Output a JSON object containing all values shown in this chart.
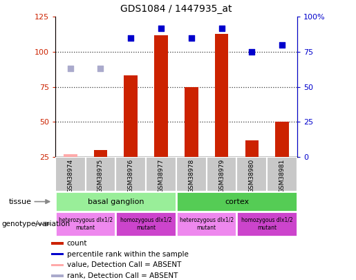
{
  "title": "GDS1084 / 1447935_at",
  "samples": [
    "GSM38974",
    "GSM38975",
    "GSM38976",
    "GSM38977",
    "GSM38978",
    "GSM38979",
    "GSM38980",
    "GSM38981"
  ],
  "count_values": [
    null,
    30,
    83,
    112,
    75,
    113,
    37,
    50
  ],
  "count_absent": [
    27,
    null,
    null,
    null,
    null,
    null,
    null,
    null
  ],
  "percentile_values": [
    null,
    null,
    85,
    92,
    85,
    92,
    75,
    80
  ],
  "percentile_absent": [
    63,
    63,
    null,
    null,
    null,
    null,
    null,
    null
  ],
  "ylim_left": [
    25,
    125
  ],
  "ylim_right": [
    0,
    100
  ],
  "left_ticks": [
    25,
    50,
    75,
    100,
    125
  ],
  "right_ticks": [
    0,
    25,
    50,
    75,
    100
  ],
  "right_tick_labels": [
    "0",
    "25",
    "50",
    "75",
    "100%"
  ],
  "bar_color": "#CC2200",
  "bar_absent_color": "#FFAAAA",
  "dot_color": "#0000CC",
  "dot_absent_color": "#AAAACC",
  "bar_width": 0.45,
  "dot_size": 40,
  "left_tick_color": "#CC2200",
  "right_tick_color": "#0000CC",
  "grid_color": "#333333",
  "grid_style": "dotted",
  "tissue_data": [
    {
      "label": "basal ganglion",
      "start": 0,
      "end": 3,
      "color": "#99EE99"
    },
    {
      "label": "cortex",
      "start": 4,
      "end": 7,
      "color": "#55CC55"
    }
  ],
  "geno_data": [
    {
      "label": "heterozygous dlx1/2\nmutant",
      "start": 0,
      "end": 1,
      "color": "#EE88EE"
    },
    {
      "label": "homozygous dlx1/2\nmutant",
      "start": 2,
      "end": 3,
      "color": "#CC44CC"
    },
    {
      "label": "heterozygous dlx1/2\nmutant",
      "start": 4,
      "end": 5,
      "color": "#EE88EE"
    },
    {
      "label": "homozygous dlx1/2\nmutant",
      "start": 6,
      "end": 7,
      "color": "#CC44CC"
    }
  ],
  "legend_items": [
    {
      "label": "count",
      "color": "#CC2200"
    },
    {
      "label": "percentile rank within the sample",
      "color": "#0000CC"
    },
    {
      "label": "value, Detection Call = ABSENT",
      "color": "#FFAAAA"
    },
    {
      "label": "rank, Detection Call = ABSENT",
      "color": "#AAAACC"
    }
  ],
  "fig_width": 5.15,
  "fig_height": 4.05,
  "dpi": 100
}
